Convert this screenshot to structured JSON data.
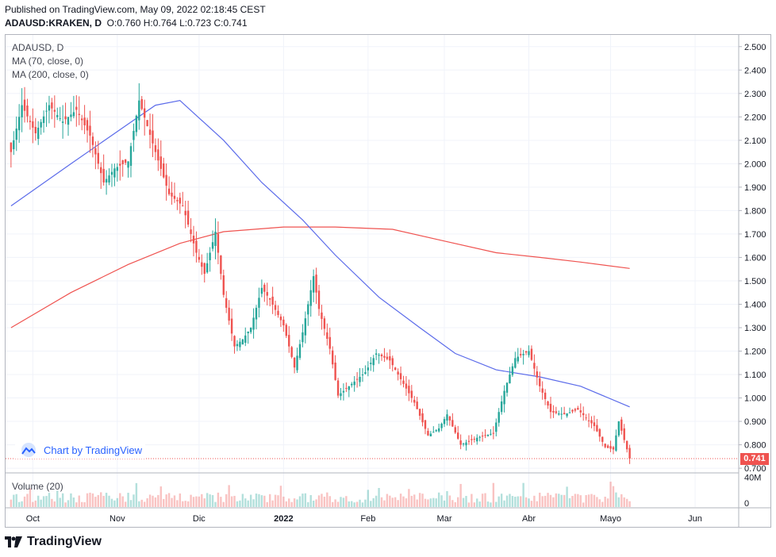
{
  "header": {
    "published": "Published on TradingView.com, May 09, 2022 02:18:45 CEST",
    "symbol": "ADAUSD:KRAKEN, D",
    "ohlc_o_label": "O:",
    "ohlc_o": "0.760",
    "ohlc_h_label": "H:",
    "ohlc_h": "0.764",
    "ohlc_l_label": "L:",
    "ohlc_l": "0.723",
    "ohlc_c_label": "C:",
    "ohlc_c": "0.741"
  },
  "legend": {
    "title": "ADAUSD, D",
    "ma70": "MA (70, close, 0)",
    "ma200": "MA (200, close, 0)",
    "volume": "Volume (20)"
  },
  "credit": {
    "label": "Chart by TradingView"
  },
  "footer": {
    "brand": "TradingView"
  },
  "colors": {
    "up": "#26a69a",
    "down": "#ef5350",
    "ma70": "#5b6bea",
    "ma200": "#ef5350",
    "grid": "#f0f3fa",
    "link": "#2962ff"
  },
  "chart_data": {
    "type": "candlestick",
    "title": "ADAUSD, D",
    "y_axis_ticks": [
      "2.500",
      "2.400",
      "2.300",
      "2.200",
      "2.100",
      "2.000",
      "1.900",
      "1.800",
      "1.700",
      "1.600",
      "1.500",
      "1.400",
      "1.300",
      "1.200",
      "1.100",
      "1.000",
      "0.900",
      "0.800",
      "0.700"
    ],
    "ylim": [
      0.68,
      2.55
    ],
    "x_axis_ticks": [
      "Oct",
      "Nov",
      "Dic",
      "2022",
      "Feb",
      "Mar",
      "Abr",
      "Mayo",
      "Jun"
    ],
    "last_price": "0.741",
    "volume_axis_ticks": [
      "40M",
      "0"
    ],
    "volume_ylim": [
      0,
      45
    ],
    "grid": true,
    "price_anchors": [
      [
        "2021-09-23",
        2.05
      ],
      [
        "2021-09-27",
        2.25
      ],
      [
        "2021-10-02",
        2.13
      ],
      [
        "2021-10-07",
        2.25
      ],
      [
        "2021-10-12",
        2.18
      ],
      [
        "2021-10-17",
        2.23
      ],
      [
        "2021-10-22",
        2.12
      ],
      [
        "2021-10-27",
        1.92
      ],
      [
        "2021-10-31",
        1.98
      ],
      [
        "2021-11-05",
        2.01
      ],
      [
        "2021-11-09",
        2.27
      ],
      [
        "2021-11-15",
        2.05
      ],
      [
        "2021-11-20",
        1.87
      ],
      [
        "2021-11-25",
        1.82
      ],
      [
        "2021-11-30",
        1.62
      ],
      [
        "2021-12-03",
        1.53
      ],
      [
        "2021-12-07",
        1.71
      ],
      [
        "2021-12-10",
        1.44
      ],
      [
        "2021-12-14",
        1.22
      ],
      [
        "2021-12-17",
        1.25
      ],
      [
        "2021-12-20",
        1.3
      ],
      [
        "2021-12-24",
        1.47
      ],
      [
        "2021-12-27",
        1.42
      ],
      [
        "2022-01-01",
        1.31
      ],
      [
        "2022-01-05",
        1.13
      ],
      [
        "2022-01-08",
        1.28
      ],
      [
        "2022-01-12",
        1.52
      ],
      [
        "2022-01-14",
        1.38
      ],
      [
        "2022-01-18",
        1.21
      ],
      [
        "2022-01-21",
        1.01
      ],
      [
        "2022-01-25",
        1.05
      ],
      [
        "2022-01-31",
        1.11
      ],
      [
        "2022-02-04",
        1.19
      ],
      [
        "2022-02-09",
        1.16
      ],
      [
        "2022-02-13",
        1.08
      ],
      [
        "2022-02-18",
        0.98
      ],
      [
        "2022-02-23",
        0.84
      ],
      [
        "2022-02-27",
        0.87
      ],
      [
        "2022-03-02",
        0.93
      ],
      [
        "2022-03-07",
        0.8
      ],
      [
        "2022-03-13",
        0.83
      ],
      [
        "2022-03-19",
        0.85
      ],
      [
        "2022-03-23",
        1.03
      ],
      [
        "2022-03-27",
        1.17
      ],
      [
        "2022-04-01",
        1.2
      ],
      [
        "2022-04-05",
        1.05
      ],
      [
        "2022-04-09",
        0.94
      ],
      [
        "2022-04-14",
        0.93
      ],
      [
        "2022-04-19",
        0.95
      ],
      [
        "2022-04-25",
        0.88
      ],
      [
        "2022-04-29",
        0.79
      ],
      [
        "2022-05-02",
        0.78
      ],
      [
        "2022-05-04",
        0.9
      ],
      [
        "2022-05-08",
        0.741
      ]
    ],
    "series": [
      {
        "name": "MA (70, close, 0)",
        "x": [
          "2021-09-23",
          "2021-10-15",
          "2021-11-05",
          "2021-11-15",
          "2021-11-24",
          "2021-12-10",
          "2021-12-24",
          "2022-01-08",
          "2022-01-20",
          "2022-02-05",
          "2022-02-20",
          "2022-03-05",
          "2022-03-20",
          "2022-04-05",
          "2022-04-20",
          "2022-05-08"
        ],
        "y": [
          1.82,
          2.0,
          2.17,
          2.25,
          2.27,
          2.1,
          1.92,
          1.76,
          1.61,
          1.43,
          1.3,
          1.19,
          1.12,
          1.09,
          1.05,
          0.962
        ]
      },
      {
        "name": "MA (200, close, 0)",
        "x": [
          "2021-09-23",
          "2021-10-15",
          "2021-11-05",
          "2021-11-24",
          "2021-12-10",
          "2022-01-01",
          "2022-01-20",
          "2022-02-10",
          "2022-03-01",
          "2022-03-20",
          "2022-04-05",
          "2022-04-20",
          "2022-05-08"
        ],
        "y": [
          1.3,
          1.45,
          1.57,
          1.66,
          1.71,
          1.73,
          1.73,
          1.72,
          1.67,
          1.62,
          1.6,
          1.58,
          1.553
        ]
      }
    ]
  }
}
